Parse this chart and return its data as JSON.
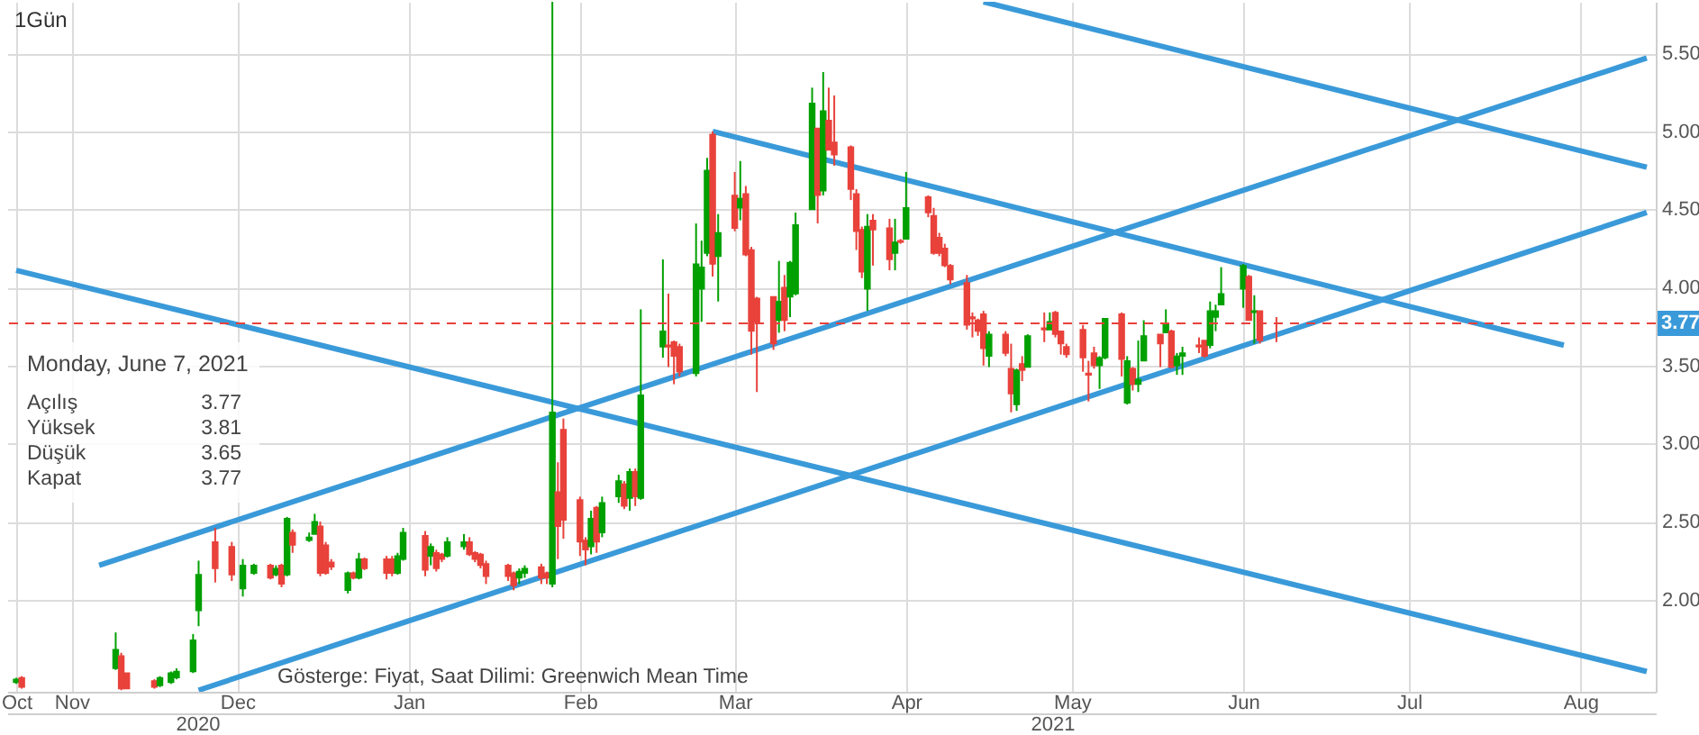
{
  "chart_data": {
    "type": "candlestick",
    "title": "1Gün",
    "x": [
      "2020-10-22",
      "2020-10-23",
      "2020-11-09",
      "2020-11-10",
      "2020-11-11",
      "2020-11-16",
      "2020-11-17",
      "2020-11-19",
      "2020-11-20",
      "2020-11-23",
      "2020-11-24",
      "2020-11-27",
      "2020-11-30",
      "2020-12-02",
      "2020-12-04",
      "2020-12-07",
      "2020-12-08",
      "2020-12-09",
      "2020-12-10",
      "2020-12-11",
      "2020-12-14",
      "2020-12-15",
      "2020-12-16",
      "2020-12-17",
      "2020-12-18",
      "2020-12-21",
      "2020-12-22",
      "2020-12-23",
      "2020-12-24",
      "2020-12-28",
      "2020-12-29",
      "2020-12-30",
      "2020-12-31",
      "2021-01-04",
      "2021-01-05",
      "2021-01-06",
      "2021-01-07",
      "2021-01-08",
      "2021-01-11",
      "2021-01-12",
      "2021-01-13",
      "2021-01-14",
      "2021-01-15",
      "2021-01-19",
      "2021-01-20",
      "2021-01-21",
      "2021-01-22",
      "2021-01-25",
      "2021-01-26",
      "2021-01-27",
      "2021-01-28",
      "2021-01-29",
      "2021-02-01",
      "2021-02-02",
      "2021-02-03",
      "2021-02-04",
      "2021-02-05",
      "2021-02-08",
      "2021-02-09",
      "2021-02-10",
      "2021-02-11",
      "2021-02-12",
      "2021-02-16",
      "2021-02-17",
      "2021-02-18",
      "2021-02-19",
      "2021-02-22",
      "2021-02-23",
      "2021-02-24",
      "2021-02-25",
      "2021-02-26",
      "2021-03-01",
      "2021-03-02",
      "2021-03-03",
      "2021-03-04",
      "2021-03-05",
      "2021-03-08",
      "2021-03-09",
      "2021-03-10",
      "2021-03-11",
      "2021-03-12",
      "2021-03-15",
      "2021-03-16",
      "2021-03-17",
      "2021-03-18",
      "2021-03-19",
      "2021-03-22",
      "2021-03-23",
      "2021-03-24",
      "2021-03-25",
      "2021-03-26",
      "2021-03-29",
      "2021-03-30",
      "2021-03-31",
      "2021-04-01",
      "2021-04-05",
      "2021-04-06",
      "2021-04-07",
      "2021-04-08",
      "2021-04-09",
      "2021-04-12",
      "2021-04-13",
      "2021-04-14",
      "2021-04-15",
      "2021-04-16",
      "2021-04-19",
      "2021-04-20",
      "2021-04-21",
      "2021-04-22",
      "2021-04-23",
      "2021-04-26",
      "2021-04-27",
      "2021-04-28",
      "2021-04-29",
      "2021-04-30",
      "2021-05-03",
      "2021-05-04",
      "2021-05-05",
      "2021-05-06",
      "2021-05-07",
      "2021-05-10",
      "2021-05-11",
      "2021-05-12",
      "2021-05-13",
      "2021-05-14",
      "2021-05-17",
      "2021-05-18",
      "2021-05-19",
      "2021-05-20",
      "2021-05-21",
      "2021-05-24",
      "2021-05-25",
      "2021-05-26",
      "2021-05-27",
      "2021-05-28",
      "2021-06-01",
      "2021-06-02",
      "2021-06-03",
      "2021-06-04",
      "2021-06-07"
    ],
    "ohlc": [
      [
        1.47,
        1.5,
        1.46,
        1.49
      ],
      [
        1.5,
        1.51,
        1.43,
        1.44
      ],
      [
        1.56,
        1.79,
        1.55,
        1.68
      ],
      [
        1.64,
        1.66,
        1.42,
        1.43
      ],
      [
        1.53,
        1.53,
        1.43,
        1.43
      ],
      [
        1.48,
        1.49,
        1.43,
        1.44
      ],
      [
        1.45,
        1.51,
        1.44,
        1.5
      ],
      [
        1.47,
        1.54,
        1.46,
        1.53
      ],
      [
        1.5,
        1.56,
        1.49,
        1.54
      ],
      [
        1.54,
        1.78,
        1.53,
        1.74
      ],
      [
        1.93,
        2.25,
        1.83,
        2.16
      ],
      [
        2.37,
        2.46,
        2.11,
        2.2
      ],
      [
        2.34,
        2.37,
        2.12,
        2.16
      ],
      [
        2.07,
        2.26,
        2.02,
        2.22
      ],
      [
        2.17,
        2.23,
        2.16,
        2.22
      ],
      [
        2.22,
        2.23,
        2.13,
        2.14
      ],
      [
        2.16,
        2.22,
        2.15,
        2.2
      ],
      [
        2.22,
        2.23,
        2.08,
        2.1
      ],
      [
        2.16,
        2.53,
        2.15,
        2.52
      ],
      [
        2.43,
        2.45,
        2.3,
        2.35
      ],
      [
        2.38,
        2.43,
        2.37,
        2.4
      ],
      [
        2.42,
        2.55,
        2.42,
        2.5
      ],
      [
        2.47,
        2.5,
        2.15,
        2.17
      ],
      [
        2.35,
        2.37,
        2.16,
        2.17
      ],
      [
        2.24,
        2.26,
        2.19,
        2.21
      ],
      [
        2.06,
        2.18,
        2.04,
        2.17
      ],
      [
        2.17,
        2.18,
        2.13,
        2.14
      ],
      [
        2.14,
        2.3,
        2.13,
        2.26
      ],
      [
        2.26,
        2.27,
        2.19,
        2.2
      ],
      [
        2.26,
        2.28,
        2.13,
        2.17
      ],
      [
        2.26,
        2.28,
        2.15,
        2.17
      ],
      [
        2.17,
        2.3,
        2.16,
        2.28
      ],
      [
        2.26,
        2.46,
        2.25,
        2.43
      ],
      [
        2.41,
        2.44,
        2.15,
        2.19
      ],
      [
        2.28,
        2.36,
        2.22,
        2.34
      ],
      [
        2.3,
        2.32,
        2.18,
        2.2
      ],
      [
        2.29,
        2.3,
        2.24,
        2.26
      ],
      [
        2.28,
        2.4,
        2.27,
        2.37
      ],
      [
        2.34,
        2.42,
        2.32,
        2.37
      ],
      [
        2.37,
        2.4,
        2.28,
        2.29
      ],
      [
        2.3,
        2.31,
        2.24,
        2.26
      ],
      [
        2.29,
        2.3,
        2.2,
        2.22
      ],
      [
        2.23,
        2.25,
        2.1,
        2.15
      ],
      [
        2.22,
        2.23,
        2.12,
        2.15
      ],
      [
        2.17,
        2.18,
        2.06,
        2.09
      ],
      [
        2.14,
        2.2,
        2.1,
        2.18
      ],
      [
        2.17,
        2.22,
        2.14,
        2.2
      ],
      [
        2.21,
        2.23,
        2.1,
        2.14
      ],
      [
        2.17,
        2.18,
        2.1,
        2.14
      ],
      [
        2.1,
        5.83,
        2.08,
        3.2
      ],
      [
        2.69,
        2.88,
        2.26,
        2.47
      ],
      [
        3.09,
        3.16,
        2.39,
        2.51
      ],
      [
        2.64,
        2.66,
        2.28,
        2.37
      ],
      [
        2.38,
        2.4,
        2.22,
        2.32
      ],
      [
        2.34,
        2.57,
        2.29,
        2.52
      ],
      [
        2.59,
        2.6,
        2.3,
        2.37
      ],
      [
        2.43,
        2.66,
        2.4,
        2.62
      ],
      [
        2.66,
        2.8,
        2.62,
        2.76
      ],
      [
        2.74,
        2.76,
        2.58,
        2.6
      ],
      [
        2.65,
        2.84,
        2.57,
        2.82
      ],
      [
        2.82,
        2.84,
        2.6,
        2.66
      ],
      [
        2.65,
        3.86,
        2.64,
        3.31
      ],
      [
        3.62,
        4.18,
        3.55,
        3.72
      ],
      [
        3.63,
        3.96,
        3.49,
        3.62
      ],
      [
        3.65,
        3.66,
        3.38,
        3.56
      ],
      [
        3.62,
        3.64,
        3.43,
        3.46
      ],
      [
        3.45,
        4.41,
        3.43,
        4.15
      ],
      [
        3.99,
        4.3,
        3.78,
        4.13
      ],
      [
        4.22,
        4.83,
        4.2,
        4.75
      ],
      [
        4.98,
        5.0,
        4.07,
        4.15
      ],
      [
        4.2,
        4.47,
        3.91,
        4.35
      ],
      [
        4.59,
        4.74,
        4.36,
        4.38
      ],
      [
        4.51,
        4.81,
        4.43,
        4.57
      ],
      [
        4.6,
        4.65,
        4.2,
        4.21
      ],
      [
        4.24,
        4.26,
        3.57,
        3.72
      ],
      [
        3.93,
        3.94,
        3.33,
        3.78
      ],
      [
        3.94,
        3.94,
        3.6,
        3.64
      ],
      [
        3.79,
        4.17,
        3.71,
        3.91
      ],
      [
        4.0,
        4.08,
        3.72,
        3.79
      ],
      [
        3.94,
        4.17,
        3.81,
        4.16
      ],
      [
        3.96,
        4.48,
        3.95,
        4.4
      ],
      [
        4.5,
        5.28,
        4.5,
        5.18
      ],
      [
        5.02,
        5.02,
        4.41,
        4.59
      ],
      [
        4.62,
        5.38,
        4.59,
        5.13
      ],
      [
        5.07,
        5.28,
        4.88,
        4.88
      ],
      [
        4.93,
        5.23,
        4.78,
        4.85
      ],
      [
        4.9,
        4.91,
        4.56,
        4.63
      ],
      [
        4.6,
        4.63,
        4.24,
        4.36
      ],
      [
        4.37,
        4.39,
        4.06,
        4.1
      ],
      [
        3.99,
        4.47,
        3.85,
        4.39
      ],
      [
        4.43,
        4.47,
        4.14,
        4.37
      ],
      [
        4.38,
        4.44,
        4.11,
        4.18
      ],
      [
        4.22,
        4.44,
        4.11,
        4.29
      ],
      [
        4.3,
        4.31,
        4.28,
        4.29
      ],
      [
        4.31,
        4.74,
        4.31,
        4.51
      ],
      [
        4.58,
        4.59,
        4.45,
        4.48
      ],
      [
        4.46,
        4.51,
        4.21,
        4.22
      ],
      [
        4.32,
        4.35,
        4.2,
        4.22
      ],
      [
        4.25,
        4.28,
        4.13,
        4.14
      ],
      [
        4.14,
        4.15,
        4.02,
        4.05
      ],
      [
        4.03,
        4.08,
        3.73,
        3.76
      ],
      [
        3.81,
        3.84,
        3.68,
        3.8
      ],
      [
        3.79,
        3.8,
        3.69,
        3.72
      ],
      [
        3.83,
        3.85,
        3.5,
        3.61
      ],
      [
        3.56,
        3.72,
        3.49,
        3.7
      ],
      [
        3.7,
        3.72,
        3.56,
        3.58
      ],
      [
        3.48,
        3.64,
        3.2,
        3.32
      ],
      [
        3.25,
        3.48,
        3.21,
        3.47
      ],
      [
        3.51,
        3.56,
        3.4,
        3.47
      ],
      [
        3.49,
        3.7,
        3.49,
        3.69
      ],
      [
        3.74,
        3.84,
        3.65,
        3.73
      ],
      [
        3.73,
        3.84,
        3.73,
        3.78
      ],
      [
        3.84,
        3.85,
        3.68,
        3.7
      ],
      [
        3.72,
        3.72,
        3.57,
        3.64
      ],
      [
        3.62,
        3.64,
        3.55,
        3.57
      ],
      [
        3.73,
        3.76,
        3.46,
        3.55
      ],
      [
        3.45,
        3.53,
        3.27,
        3.44
      ],
      [
        3.58,
        3.62,
        3.48,
        3.5
      ],
      [
        3.5,
        3.56,
        3.35,
        3.55
      ],
      [
        3.55,
        3.8,
        3.54,
        3.8
      ],
      [
        3.83,
        3.84,
        3.43,
        3.54
      ],
      [
        3.26,
        3.56,
        3.25,
        3.53
      ],
      [
        3.48,
        3.49,
        3.34,
        3.38
      ],
      [
        3.38,
        3.66,
        3.33,
        3.41
      ],
      [
        3.53,
        3.79,
        3.53,
        3.69
      ],
      [
        3.7,
        3.7,
        3.49,
        3.64
      ],
      [
        3.71,
        3.86,
        3.71,
        3.77
      ],
      [
        3.72,
        3.73,
        3.48,
        3.49
      ],
      [
        3.5,
        3.58,
        3.44,
        3.56
      ],
      [
        3.56,
        3.62,
        3.44,
        3.58
      ],
      [
        3.63,
        3.68,
        3.58,
        3.62
      ],
      [
        3.66,
        3.66,
        3.55,
        3.56
      ],
      [
        3.63,
        3.91,
        3.61,
        3.85
      ],
      [
        3.81,
        3.89,
        3.72,
        3.85
      ],
      [
        3.89,
        4.13,
        3.89,
        3.96
      ],
      [
        3.99,
        4.15,
        3.87,
        4.14
      ],
      [
        4.07,
        4.08,
        3.79,
        3.79
      ],
      [
        3.84,
        3.95,
        3.64,
        3.85
      ],
      [
        3.85,
        3.85,
        3.64,
        3.66
      ],
      [
        3.77,
        3.81,
        3.65,
        3.77
      ]
    ],
    "colors": [
      "#00a000",
      "#e8423b",
      "#00a000",
      "#e8423b",
      "#e8423b",
      "#e8423b",
      "#00a000",
      "#00a000",
      "#00a000",
      "#00a000",
      "#00a000",
      "#e8423b",
      "#e8423b",
      "#00a000",
      "#00a000",
      "#e8423b",
      "#00a000",
      "#e8423b",
      "#00a000",
      "#e8423b",
      "#00a000",
      "#00a000",
      "#e8423b",
      "#e8423b",
      "#e8423b",
      "#00a000",
      "#e8423b",
      "#00a000",
      "#e8423b",
      "#e8423b",
      "#e8423b",
      "#00a000",
      "#00a000",
      "#e8423b",
      "#00a000",
      "#e8423b",
      "#e8423b",
      "#00a000",
      "#00a000",
      "#e8423b",
      "#e8423b",
      "#e8423b",
      "#e8423b",
      "#e8423b",
      "#e8423b",
      "#00a000",
      "#00a000",
      "#e8423b",
      "#e8423b",
      "#00a000",
      "#e8423b",
      "#e8423b",
      "#e8423b",
      "#e8423b",
      "#00a000",
      "#e8423b",
      "#00a000",
      "#00a000",
      "#e8423b",
      "#00a000",
      "#e8423b",
      "#00a000",
      "#00a000",
      "#e8423b",
      "#e8423b",
      "#e8423b",
      "#00a000",
      "#00a000",
      "#00a000",
      "#e8423b",
      "#00a000",
      "#e8423b",
      "#00a000",
      "#e8423b",
      "#e8423b",
      "#e8423b",
      "#e8423b",
      "#00a000",
      "#e8423b",
      "#00a000",
      "#00a000",
      "#00a000",
      "#e8423b",
      "#00a000",
      "#e8423b",
      "#e8423b",
      "#e8423b",
      "#e8423b",
      "#e8423b",
      "#00a000",
      "#e8423b",
      "#e8423b",
      "#00a000",
      "#e8423b",
      "#00a000",
      "#e8423b",
      "#e8423b",
      "#e8423b",
      "#e8423b",
      "#e8423b",
      "#e8423b",
      "#e8423b",
      "#e8423b",
      "#e8423b",
      "#00a000",
      "#e8423b",
      "#e8423b",
      "#00a000",
      "#e8423b",
      "#00a000",
      "#e8423b",
      "#00a000",
      "#e8423b",
      "#e8423b",
      "#e8423b",
      "#e8423b",
      "#e8423b",
      "#e8423b",
      "#00a000",
      "#00a000",
      "#e8423b",
      "#00a000",
      "#e8423b",
      "#00a000",
      "#00a000",
      "#e8423b",
      "#00a000",
      "#e8423b",
      "#00a000",
      "#00a000",
      "#e8423b",
      "#e8423b",
      "#00a000",
      "#00a000",
      "#00a000",
      "#00a000",
      "#e8423b",
      "#00a000",
      "#e8423b",
      "#e8423b"
    ],
    "series": [
      {
        "type": "line",
        "color": "#3a9ad9",
        "x": [
          "2020-10-22",
          "2021-08-13"
        ],
        "values": [
          4.11,
          1.54
        ]
      },
      {
        "type": "line",
        "color": "#3a9ad9",
        "x": [
          "2020-11-06",
          "2021-08-13"
        ],
        "values": [
          2.22,
          5.47
        ]
      },
      {
        "type": "line",
        "color": "#3a9ad9",
        "x": [
          "2020-11-24",
          "2021-08-13"
        ],
        "values": [
          1.42,
          4.48
        ]
      },
      {
        "type": "line",
        "color": "#3a9ad9",
        "x": [
          "2021-02-25",
          "2021-07-29"
        ],
        "values": [
          5.0,
          3.63
        ]
      },
      {
        "type": "line",
        "color": "#3a9ad9",
        "x": [
          "2021-04-15",
          "2021-08-13"
        ],
        "values": [
          5.83,
          4.77
        ]
      }
    ],
    "xlim": [
      "2020-10-22",
      "2021-08-13"
    ],
    "xticks": [
      {
        "value": "2020-10-22",
        "label": "Oct"
      },
      {
        "value": "2020-11-01",
        "label": "Nov"
      },
      {
        "value": "2020-12-01",
        "label": "Dec"
      },
      {
        "value": "2021-01-01",
        "label": "Jan"
      },
      {
        "value": "2021-02-01",
        "label": "Feb"
      },
      {
        "value": "2021-03-01",
        "label": "Mar"
      },
      {
        "value": "2021-04-01",
        "label": "Apr"
      },
      {
        "value": "2021-05-01",
        "label": "May"
      },
      {
        "value": "2021-06-01",
        "label": "Jun"
      },
      {
        "value": "2021-07-01",
        "label": "Jul"
      },
      {
        "value": "2021-08-01",
        "label": "Aug"
      }
    ],
    "x2lim": [
      "2020-10-22",
      "2021-08-13"
    ],
    "x2ticks": [
      {
        "value": "2020-11-25",
        "label": "2020"
      },
      {
        "value": "2021-04-27",
        "label": "2021"
      }
    ],
    "ylim": [
      1.41,
      5.83
    ],
    "yticks": [
      {
        "value": 2,
        "label": "2.00"
      },
      {
        "value": 2.5,
        "label": "2.50"
      },
      {
        "value": 3,
        "label": "3.00"
      },
      {
        "value": 3.5,
        "label": "3.50"
      },
      {
        "value": 4,
        "label": "4.00"
      },
      {
        "value": 4.5,
        "label": "4.50"
      },
      {
        "value": 5,
        "label": "5.00"
      },
      {
        "value": 5.5,
        "label": "5.50"
      }
    ],
    "ref_lines": [
      {
        "axis": "y",
        "value": 3.77,
        "label": "3.77",
        "color": "#e8423b",
        "line_style": "dashed"
      }
    ],
    "annotations": [
      "Monday, June 7, 2021",
      "Açılış",
      "3.77",
      "Yüksek",
      "3.81",
      "Düşük",
      "3.65",
      "Kapat",
      "3.77",
      "Gösterge: Fiyat, Saat Dilimi: Greenwich Mean Time"
    ],
    "grid": true
  }
}
